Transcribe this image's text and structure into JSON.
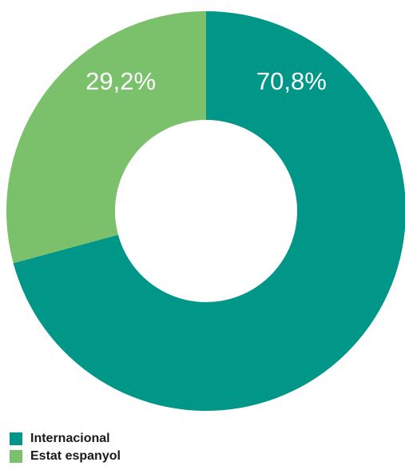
{
  "chart_data": {
    "type": "pie",
    "donut": true,
    "title": "",
    "slices": [
      {
        "name": "Internacional",
        "value": 70.8,
        "label": "70,8%",
        "color": "#009688"
      },
      {
        "name": "Estat espanyol",
        "value": 29.2,
        "label": "29,2%",
        "color": "#7bc16c"
      }
    ],
    "legend_position": "bottom-left"
  }
}
